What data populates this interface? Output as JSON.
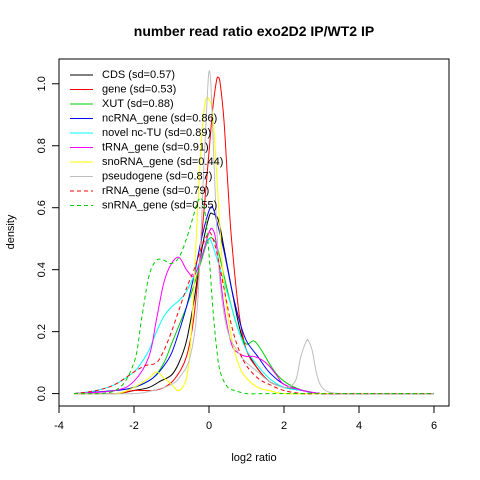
{
  "chart_data": {
    "type": "line",
    "title": "number read ratio exo2D2 IP/WT2 IP",
    "xlabel": "log2 ratio",
    "ylabel": "density",
    "xlim": [
      -4.0,
      6.4
    ],
    "ylim": [
      -0.04,
      1.08
    ],
    "x_ticks": [
      -4,
      -2,
      0,
      2,
      4,
      6
    ],
    "x_tick_labels": [
      "-4",
      "-2",
      "0",
      "2",
      "4",
      "6"
    ],
    "y_ticks": [
      0.0,
      0.2,
      0.4,
      0.6,
      0.8,
      1.0
    ],
    "y_tick_labels": [
      "0.0",
      "0.2",
      "0.4",
      "0.6",
      "0.8",
      "1.0"
    ],
    "grid": false,
    "legend_position": "top-left",
    "series": [
      {
        "name": "CDS (sd=0.57)",
        "color": "#000000",
        "dash": false,
        "x": [
          -3.6,
          -2.5,
          -2.0,
          -1.6,
          -1.3,
          -1.0,
          -0.8,
          -0.6,
          -0.4,
          -0.2,
          0.0,
          0.1,
          0.25,
          0.4,
          0.6,
          0.8,
          1.0,
          1.3,
          1.6,
          2.0,
          2.5,
          3.0,
          4.0,
          5.0,
          6.0
        ],
        "y": [
          0.0,
          0.0,
          0.01,
          0.02,
          0.04,
          0.06,
          0.1,
          0.17,
          0.3,
          0.46,
          0.57,
          0.58,
          0.56,
          0.47,
          0.34,
          0.22,
          0.14,
          0.08,
          0.04,
          0.02,
          0.01,
          0.0,
          0.0,
          0.0,
          0.0
        ]
      },
      {
        "name": "gene (sd=0.53)",
        "color": "#ff0000",
        "dash": false,
        "x": [
          -3.6,
          -2.5,
          -2.0,
          -1.5,
          -1.2,
          -0.9,
          -0.6,
          -0.4,
          -0.2,
          0.0,
          0.1,
          0.2,
          0.25,
          0.3,
          0.4,
          0.5,
          0.6,
          0.8,
          1.0,
          1.3,
          1.6,
          2.0,
          2.5,
          3.0,
          4.0,
          6.0
        ],
        "y": [
          0.0,
          0.0,
          0.01,
          0.01,
          0.02,
          0.05,
          0.12,
          0.25,
          0.5,
          0.78,
          0.92,
          1.01,
          1.02,
          1.0,
          0.88,
          0.68,
          0.5,
          0.26,
          0.14,
          0.08,
          0.04,
          0.02,
          0.01,
          0.0,
          0.0,
          0.0
        ]
      },
      {
        "name": "XUT (sd=0.88)",
        "color": "#00cd00",
        "dash": false,
        "x": [
          -3.6,
          -2.5,
          -2.0,
          -1.5,
          -1.2,
          -1.0,
          -0.8,
          -0.6,
          -0.4,
          -0.2,
          0.0,
          0.2,
          0.4,
          0.6,
          0.8,
          1.0,
          1.2,
          1.4,
          1.7,
          2.0,
          2.5,
          3.0,
          4.0,
          5.0,
          6.0
        ],
        "y": [
          0.0,
          0.01,
          0.02,
          0.05,
          0.1,
          0.16,
          0.22,
          0.28,
          0.35,
          0.43,
          0.5,
          0.48,
          0.38,
          0.28,
          0.2,
          0.16,
          0.17,
          0.14,
          0.08,
          0.04,
          0.01,
          0.0,
          0.0,
          0.0,
          0.0
        ]
      },
      {
        "name": "ncRNA_gene (sd=0.86)",
        "color": "#0000ff",
        "dash": false,
        "x": [
          -3.6,
          -2.5,
          -2.0,
          -1.5,
          -1.2,
          -1.0,
          -0.8,
          -0.6,
          -0.4,
          -0.2,
          0.0,
          0.1,
          0.2,
          0.4,
          0.6,
          0.8,
          1.0,
          1.3,
          1.6,
          2.0,
          2.5,
          3.0,
          4.0,
          5.0,
          6.0
        ],
        "y": [
          0.0,
          0.01,
          0.02,
          0.05,
          0.09,
          0.13,
          0.2,
          0.28,
          0.38,
          0.5,
          0.59,
          0.6,
          0.56,
          0.46,
          0.34,
          0.24,
          0.17,
          0.12,
          0.07,
          0.03,
          0.01,
          0.0,
          0.0,
          0.0,
          0.0
        ]
      },
      {
        "name": "novel nc-TU (sd=0.89)",
        "color": "#00ffff",
        "dash": false,
        "x": [
          -3.6,
          -3.0,
          -2.5,
          -2.0,
          -1.8,
          -1.6,
          -1.4,
          -1.2,
          -1.0,
          -0.8,
          -0.6,
          -0.4,
          -0.2,
          0.0,
          0.2,
          0.4,
          0.6,
          0.8,
          1.0,
          1.3,
          1.6,
          2.0,
          2.5,
          3.0,
          4.0,
          5.0,
          6.0
        ],
        "y": [
          0.0,
          0.01,
          0.03,
          0.07,
          0.1,
          0.14,
          0.2,
          0.25,
          0.28,
          0.3,
          0.33,
          0.38,
          0.44,
          0.5,
          0.44,
          0.36,
          0.28,
          0.2,
          0.14,
          0.09,
          0.05,
          0.02,
          0.01,
          0.0,
          0.0,
          0.0,
          0.0
        ]
      },
      {
        "name": "tRNA_gene (sd=0.91)",
        "color": "#ff00ff",
        "dash": false,
        "x": [
          -3.6,
          -2.5,
          -2.0,
          -1.6,
          -1.4,
          -1.2,
          -1.0,
          -0.8,
          -0.6,
          -0.4,
          -0.2,
          0.0,
          0.1,
          0.2,
          0.4,
          0.6,
          0.8,
          1.0,
          1.2,
          1.4,
          1.6,
          1.8,
          2.0,
          2.5,
          3.0,
          4.0,
          5.0,
          6.0
        ],
        "y": [
          0.0,
          0.01,
          0.04,
          0.12,
          0.24,
          0.36,
          0.42,
          0.44,
          0.4,
          0.38,
          0.44,
          0.52,
          0.53,
          0.48,
          0.28,
          0.16,
          0.13,
          0.12,
          0.12,
          0.11,
          0.09,
          0.06,
          0.03,
          0.01,
          0.0,
          0.0,
          0.0,
          0.0
        ]
      },
      {
        "name": "snoRNA_gene (sd=0.44)",
        "color": "#ffff00",
        "dash": false,
        "x": [
          -3.6,
          -2.5,
          -2.0,
          -1.6,
          -1.4,
          -1.2,
          -1.0,
          -0.8,
          -0.6,
          -0.5,
          -0.4,
          -0.3,
          -0.2,
          -0.1,
          0.0,
          0.1,
          0.2,
          0.3,
          0.4,
          0.6,
          0.8,
          1.0,
          1.3,
          1.6,
          2.0,
          3.0,
          4.0,
          6.0
        ],
        "y": [
          0.0,
          0.0,
          0.02,
          0.05,
          0.07,
          0.05,
          0.03,
          0.01,
          0.05,
          0.15,
          0.35,
          0.6,
          0.82,
          0.94,
          0.95,
          0.9,
          0.72,
          0.52,
          0.35,
          0.18,
          0.09,
          0.05,
          0.02,
          0.01,
          0.0,
          0.0,
          0.0,
          0.0
        ]
      },
      {
        "name": "pseudogene (sd=0.87)",
        "color": "#bebebe",
        "dash": false,
        "x": [
          -3.6,
          -2.0,
          -1.5,
          -1.2,
          -1.0,
          -0.8,
          -0.5,
          -0.3,
          -0.15,
          -0.05,
          0.0,
          0.05,
          0.1,
          0.2,
          0.3,
          0.5,
          0.8,
          1.0,
          1.3,
          1.6,
          2.0,
          2.3,
          2.45,
          2.6,
          2.65,
          2.75,
          2.9,
          3.1,
          3.5,
          4.0,
          5.0,
          6.0
        ],
        "y": [
          0.0,
          0.0,
          0.01,
          0.02,
          0.03,
          0.05,
          0.12,
          0.3,
          0.7,
          0.95,
          1.04,
          1.0,
          0.85,
          0.55,
          0.35,
          0.2,
          0.13,
          0.1,
          0.07,
          0.04,
          0.02,
          0.04,
          0.12,
          0.17,
          0.17,
          0.14,
          0.05,
          0.01,
          0.0,
          0.0,
          0.0,
          0.0
        ]
      },
      {
        "name": "rRNA_gene (sd=0.79)",
        "color": "#ff0000",
        "dash": true,
        "x": [
          -3.6,
          -3.0,
          -2.5,
          -2.0,
          -1.7,
          -1.4,
          -1.2,
          -1.0,
          -0.8,
          -0.6,
          -0.4,
          -0.2,
          0.0,
          0.1,
          0.2,
          0.4,
          0.6,
          0.8,
          1.0,
          1.3,
          1.6,
          2.0,
          2.5,
          3.0,
          4.0,
          5.0,
          6.0
        ],
        "y": [
          0.0,
          0.01,
          0.03,
          0.07,
          0.09,
          0.1,
          0.14,
          0.2,
          0.27,
          0.34,
          0.4,
          0.47,
          0.52,
          0.5,
          0.46,
          0.34,
          0.22,
          0.14,
          0.09,
          0.05,
          0.03,
          0.01,
          0.0,
          0.0,
          0.0,
          0.0,
          0.0
        ]
      },
      {
        "name": "snRNA_gene (sd=0.55)",
        "color": "#00cd00",
        "dash": true,
        "x": [
          -3.6,
          -2.5,
          -2.0,
          -1.8,
          -1.6,
          -1.4,
          -1.2,
          -1.0,
          -0.8,
          -0.6,
          -0.4,
          -0.3,
          -0.2,
          -0.1,
          0.0,
          0.1,
          0.2,
          0.3,
          0.5,
          0.7,
          1.0,
          1.5,
          2.0,
          3.0,
          4.0,
          6.0
        ],
        "y": [
          0.0,
          0.01,
          0.1,
          0.24,
          0.38,
          0.43,
          0.43,
          0.42,
          0.44,
          0.5,
          0.58,
          0.62,
          0.63,
          0.58,
          0.45,
          0.28,
          0.15,
          0.07,
          0.02,
          0.01,
          0.0,
          0.0,
          0.0,
          0.0,
          0.0,
          0.0
        ]
      }
    ]
  }
}
